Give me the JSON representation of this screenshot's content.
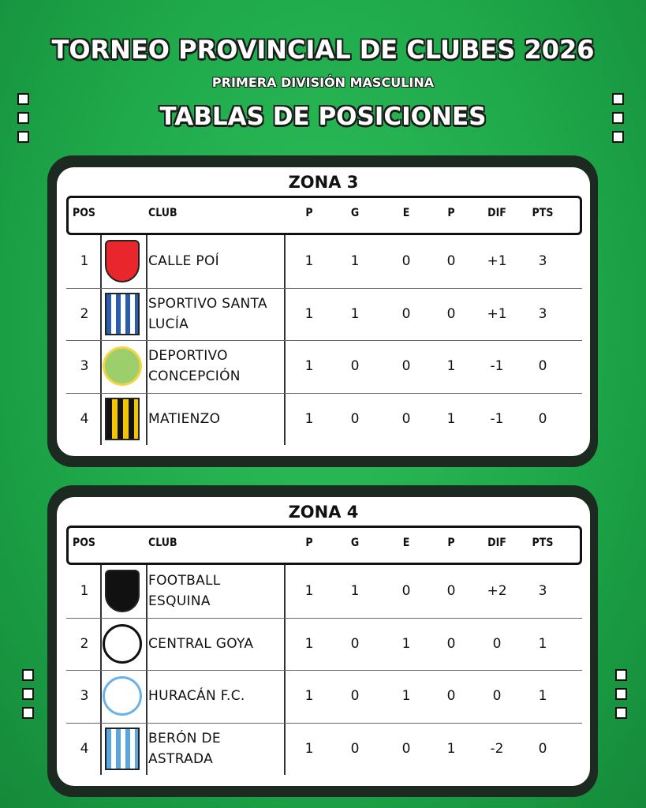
{
  "header": {
    "title": "TORNEO PROVINCIAL DE CLUBES 2026",
    "subtitle": "PRIMERA DIVISIÓN MASCULINA",
    "heading": "TABLAS DE POSICIONES"
  },
  "zones": [
    {
      "title": "ZONA 3",
      "columns": [
        "POS",
        "CLUB",
        "P",
        "G",
        "E",
        "P",
        "DIF",
        "PTS"
      ],
      "rows": [
        [
          "1",
          "CALLE POÍ",
          "1",
          "1",
          "0",
          "0",
          "+1",
          "3"
        ],
        [
          "2",
          "SPORTIVO SANTA LUCÍA",
          "1",
          "1",
          "0",
          "0",
          "+1",
          "3"
        ],
        [
          "3",
          "DEPORTIVO CONCEPCIÓN",
          "1",
          "0",
          "0",
          "1",
          "-1",
          "0"
        ],
        [
          "4",
          "MATIENZO",
          "1",
          "0",
          "0",
          "1",
          "-1",
          "0"
        ]
      ]
    },
    {
      "title": "ZONA 4",
      "columns": [
        "POS",
        "CLUB",
        "P",
        "G",
        "E",
        "P",
        "DIF",
        "PTS"
      ],
      "rows": [
        [
          "1",
          "FOOTBALL ESQUINA",
          "1",
          "1",
          "0",
          "0",
          "+2",
          "3"
        ],
        [
          "2",
          "CENTRAL GOYA",
          "1",
          "0",
          "1",
          "0",
          "0",
          "1"
        ],
        [
          "3",
          "HURACÁN F.C.",
          "1",
          "0",
          "1",
          "0",
          "0",
          "1"
        ],
        [
          "4",
          "BERÓN DE ASTRADA",
          "1",
          "0",
          "0",
          "1",
          "-2",
          "0"
        ]
      ]
    }
  ]
}
